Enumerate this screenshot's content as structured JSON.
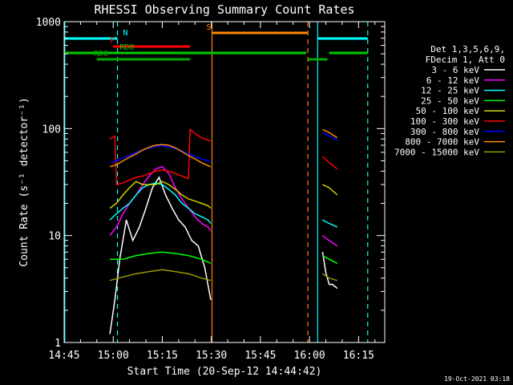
{
  "chart_data": {
    "type": "line",
    "title": "RHESSI Observing Summary Count Rates",
    "xlabel": "Start Time (20-Sep-12 14:44:42)",
    "ylabel": "Count Rate (s⁻¹ detector⁻¹)",
    "yscale": "log",
    "ylim": [
      1,
      1000
    ],
    "xlim_minutes_after_1445": [
      0,
      98
    ],
    "x_ticks": [
      {
        "label": "14:45",
        "min": 0
      },
      {
        "label": "15:00",
        "min": 15
      },
      {
        "label": "15:15",
        "min": 30
      },
      {
        "label": "15:30",
        "min": 45
      },
      {
        "label": "15:45",
        "min": 60
      },
      {
        "label": "16:00",
        "min": 75
      },
      {
        "label": "16:15",
        "min": 90
      }
    ],
    "y_ticks": [
      {
        "label": "1",
        "value": 1
      },
      {
        "label": "10",
        "value": 10
      },
      {
        "label": "100",
        "value": 100
      },
      {
        "label": "1000",
        "value": 1000
      }
    ],
    "legend": {
      "header": [
        "Det 1,3,5,6,9,",
        "FDecim 1, Att 0"
      ],
      "placement": "right"
    },
    "series": [
      {
        "name": "3 - 6 keV",
        "color": "#ffffff",
        "segments": [
          {
            "x": [
              14,
              15.5,
              17,
              19,
              21,
              23,
              25,
              27,
              29,
              31,
              33,
              35,
              37,
              39,
              41,
              43,
              44.8
            ],
            "y": [
              1.2,
              2.5,
              6,
              14,
              9,
              12,
              18,
              28,
              35,
              24,
              18,
              14,
              12,
              9,
              8,
              5,
              2.5
            ]
          },
          {
            "x": [
              79,
              80,
              81,
              82,
              83.5
            ],
            "y": [
              7,
              4.5,
              3.5,
              3.5,
              3.2
            ]
          }
        ]
      },
      {
        "name": "6 - 12 keV",
        "color": "#ff00ff",
        "segments": [
          {
            "x": [
              14,
              16,
              18,
              20,
              22,
              24,
              26,
              28,
              30,
              32,
              34,
              36,
              38,
              40,
              42,
              44,
              44.8
            ],
            "y": [
              10,
              12,
              16,
              20,
              24,
              30,
              36,
              42,
              44,
              38,
              28,
              22,
              18,
              15,
              13,
              12,
              11
            ]
          },
          {
            "x": [
              79,
              81,
              83.5
            ],
            "y": [
              10,
              9,
              8
            ]
          }
        ]
      },
      {
        "name": "12 - 25 keV",
        "color": "#00ffff",
        "segments": [
          {
            "x": [
              14,
              16,
              18,
              20,
              22,
              24,
              26,
              28,
              30,
              32,
              34,
              36,
              38,
              40,
              42,
              44,
              44.8
            ],
            "y": [
              14,
              16,
              18,
              20,
              24,
              28,
              30,
              31,
              30,
              27,
              24,
              20,
              18,
              16,
              15,
              14,
              13
            ]
          },
          {
            "x": [
              79,
              81,
              83.5
            ],
            "y": [
              14,
              13,
              12
            ]
          }
        ]
      },
      {
        "name": "25 - 50 keV",
        "color": "#00ff00",
        "segments": [
          {
            "x": [
              14,
              18,
              22,
              26,
              30,
              34,
              38,
              42,
              44.8
            ],
            "y": [
              6,
              6,
              6.5,
              6.8,
              7,
              6.8,
              6.5,
              6,
              5.5
            ]
          },
          {
            "x": [
              79,
              81,
              83.5
            ],
            "y": [
              6.5,
              6,
              5.5
            ]
          }
        ]
      },
      {
        "name": "50 - 100 keV",
        "color": "#d0d000",
        "segments": [
          {
            "x": [
              14,
              16,
              18,
              20,
              22,
              24,
              26,
              28,
              30,
              32,
              34,
              36,
              38,
              40,
              42,
              44,
              44.8
            ],
            "y": [
              18,
              20,
              24,
              28,
              32,
              30,
              30,
              30,
              32,
              30,
              27,
              24,
              22,
              21,
              20,
              19,
              18
            ]
          },
          {
            "x": [
              79,
              81,
              83.5
            ],
            "y": [
              30,
              28,
              24
            ]
          }
        ]
      },
      {
        "name": "100 - 300 keV",
        "color": "#ff0000",
        "segments": [
          {
            "x": [
              14,
              15.5,
              16,
              18,
              20,
              22,
              24,
              26,
              28,
              30,
              32,
              34,
              36,
              38,
              38.5,
              40,
              42,
              44.8
            ],
            "y": [
              80,
              85,
              30,
              31,
              33,
              35,
              36,
              38,
              40,
              41,
              40,
              38,
              36,
              34,
              98,
              90,
              82,
              76
            ]
          },
          {
            "x": [
              79,
              81,
              83.5
            ],
            "y": [
              55,
              48,
              42
            ]
          }
        ]
      },
      {
        "name": "300 - 800 keV",
        "color": "#0000ff",
        "segments": [
          {
            "x": [
              14,
              16,
              18,
              20,
              22,
              24,
              26,
              28,
              30,
              32,
              34,
              36,
              38,
              40,
              42,
              44,
              44.8
            ],
            "y": [
              48,
              50,
              53,
              56,
              60,
              63,
              66,
              68,
              69,
              68,
              65,
              62,
              58,
              55,
              52,
              50,
              49
            ]
          },
          {
            "x": [
              79,
              81,
              83.5
            ],
            "y": [
              92,
              86,
              78
            ]
          }
        ]
      },
      {
        "name": "800 - 7000 keV",
        "color": "#ff8800",
        "segments": [
          {
            "x": [
              14,
              16,
              18,
              20,
              22,
              24,
              26,
              28,
              30,
              32,
              34,
              36,
              38,
              40,
              42,
              44,
              44.8
            ],
            "y": [
              44,
              46,
              50,
              54,
              58,
              63,
              67,
              70,
              71,
              70,
              66,
              61,
              56,
              52,
              48,
              45,
              44
            ]
          },
          {
            "x": [
              79,
              81,
              83.5
            ],
            "y": [
              98,
              92,
              82
            ]
          }
        ]
      },
      {
        "name": "7000 - 15000 keV",
        "color": "#999900",
        "segments": [
          {
            "x": [
              14,
              18,
              22,
              26,
              30,
              34,
              38,
              42,
              44.8
            ],
            "y": [
              3.8,
              4.1,
              4.4,
              4.6,
              4.8,
              4.6,
              4.4,
              4.0,
              3.8
            ]
          },
          {
            "x": [
              79,
              81,
              83.5
            ],
            "y": [
              4.4,
              4.0,
              3.8
            ]
          }
        ]
      }
    ],
    "vlines": [
      {
        "min": 0.2,
        "color": "#00ffff",
        "style": "solid"
      },
      {
        "min": 16.3,
        "color": "#00ffff",
        "style": "dashed"
      },
      {
        "min": 45.2,
        "color": "#ff8800",
        "style": "solid"
      },
      {
        "min": 74.5,
        "color": "#ff8800",
        "style": "dashed"
      },
      {
        "min": 77.5,
        "color": "#00ffff",
        "style": "solid"
      },
      {
        "min": 92.8,
        "color": "#00ffff",
        "style": "dashed"
      }
    ],
    "state_bars": [
      {
        "label": "N",
        "label_min": 18,
        "color": "#00ffff",
        "y": 48,
        "segments": [
          [
            0,
            16.3
          ],
          [
            77.5,
            92.8
          ]
        ]
      },
      {
        "label": "S",
        "label_min": 43.5,
        "color": "#ff8800",
        "y": 41,
        "segments": [
          [
            45.2,
            74.5
          ]
        ]
      },
      {
        "label": "F",
        "label_min": 14,
        "color": "#ff0000",
        "y": 58,
        "segments": [
          [
            15,
            38.5
          ]
        ]
      },
      {
        "label": "RD0",
        "label_min": 17,
        "color": "#00cc00",
        "y": 66,
        "segments": [
          [
            0,
            74
          ],
          [
            81,
            92.8
          ]
        ]
      },
      {
        "label": "RD6",
        "label_min": 9,
        "color": "#00aa00",
        "y": 74,
        "segments": [
          [
            10,
            38.5
          ],
          [
            74.5,
            80.5
          ]
        ]
      }
    ]
  },
  "timestamp": "19-Oct-2021 03:18"
}
